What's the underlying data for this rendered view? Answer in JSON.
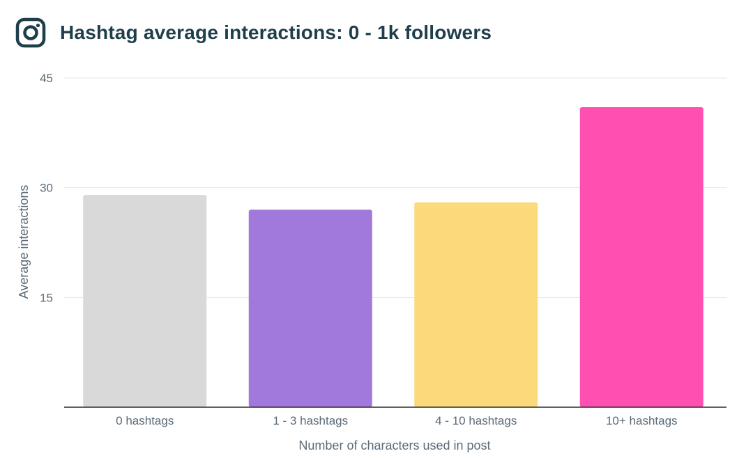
{
  "header": {
    "title": "Hashtag average interactions: 0 - 1k followers",
    "logo_icon": "instagram-icon"
  },
  "colors": {
    "title": "#1f3e4b",
    "axis_text": "#5b6b78",
    "gridline": "#e3e6e8",
    "baseline": "#2b2b2b"
  },
  "chart_data": {
    "type": "bar",
    "title": "Hashtag average interactions: 0 - 1k followers",
    "xlabel": "Number of characters used in post",
    "ylabel": "Average interactions",
    "categories": [
      "0 hashtags",
      "1 - 3 hashtags",
      "4 - 10 hashtags",
      "10+ hashtags"
    ],
    "values": [
      29,
      27,
      28,
      41
    ],
    "bar_colors": [
      "#d9d9d9",
      "#a178dc",
      "#fcd97a",
      "#ff4fb0"
    ],
    "ylim": [
      0,
      45
    ],
    "yticks": [
      15,
      30,
      45
    ],
    "ytick_labels": [
      "15",
      "30",
      "45"
    ],
    "grid": true,
    "legend": "none"
  }
}
